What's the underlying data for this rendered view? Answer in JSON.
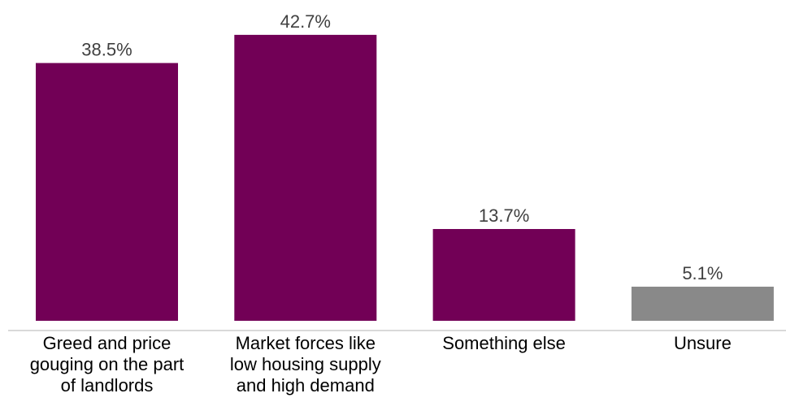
{
  "chart_data": {
    "type": "bar",
    "categories": [
      "Greed and price gouging on the part of landlords",
      "Market forces like low housing supply and high demand",
      "Something else",
      "Unsure"
    ],
    "category_lines": [
      [
        "Greed and price",
        "gouging on the part",
        "of landlords"
      ],
      [
        "Market forces like",
        "low housing supply",
        "and high demand"
      ],
      [
        "Something else"
      ],
      [
        "Unsure"
      ]
    ],
    "values": [
      38.5,
      42.7,
      13.7,
      5.1
    ],
    "value_labels": [
      "38.5%",
      "42.7%",
      "13.7%",
      "5.1%"
    ],
    "bar_colors": [
      "#720056",
      "#720056",
      "#720056",
      "#898989"
    ],
    "axis_color": "#d9d9d9",
    "title": "",
    "xlabel": "",
    "ylabel": "",
    "ylim": [
      0,
      45
    ],
    "grid": false,
    "legend": "none"
  }
}
